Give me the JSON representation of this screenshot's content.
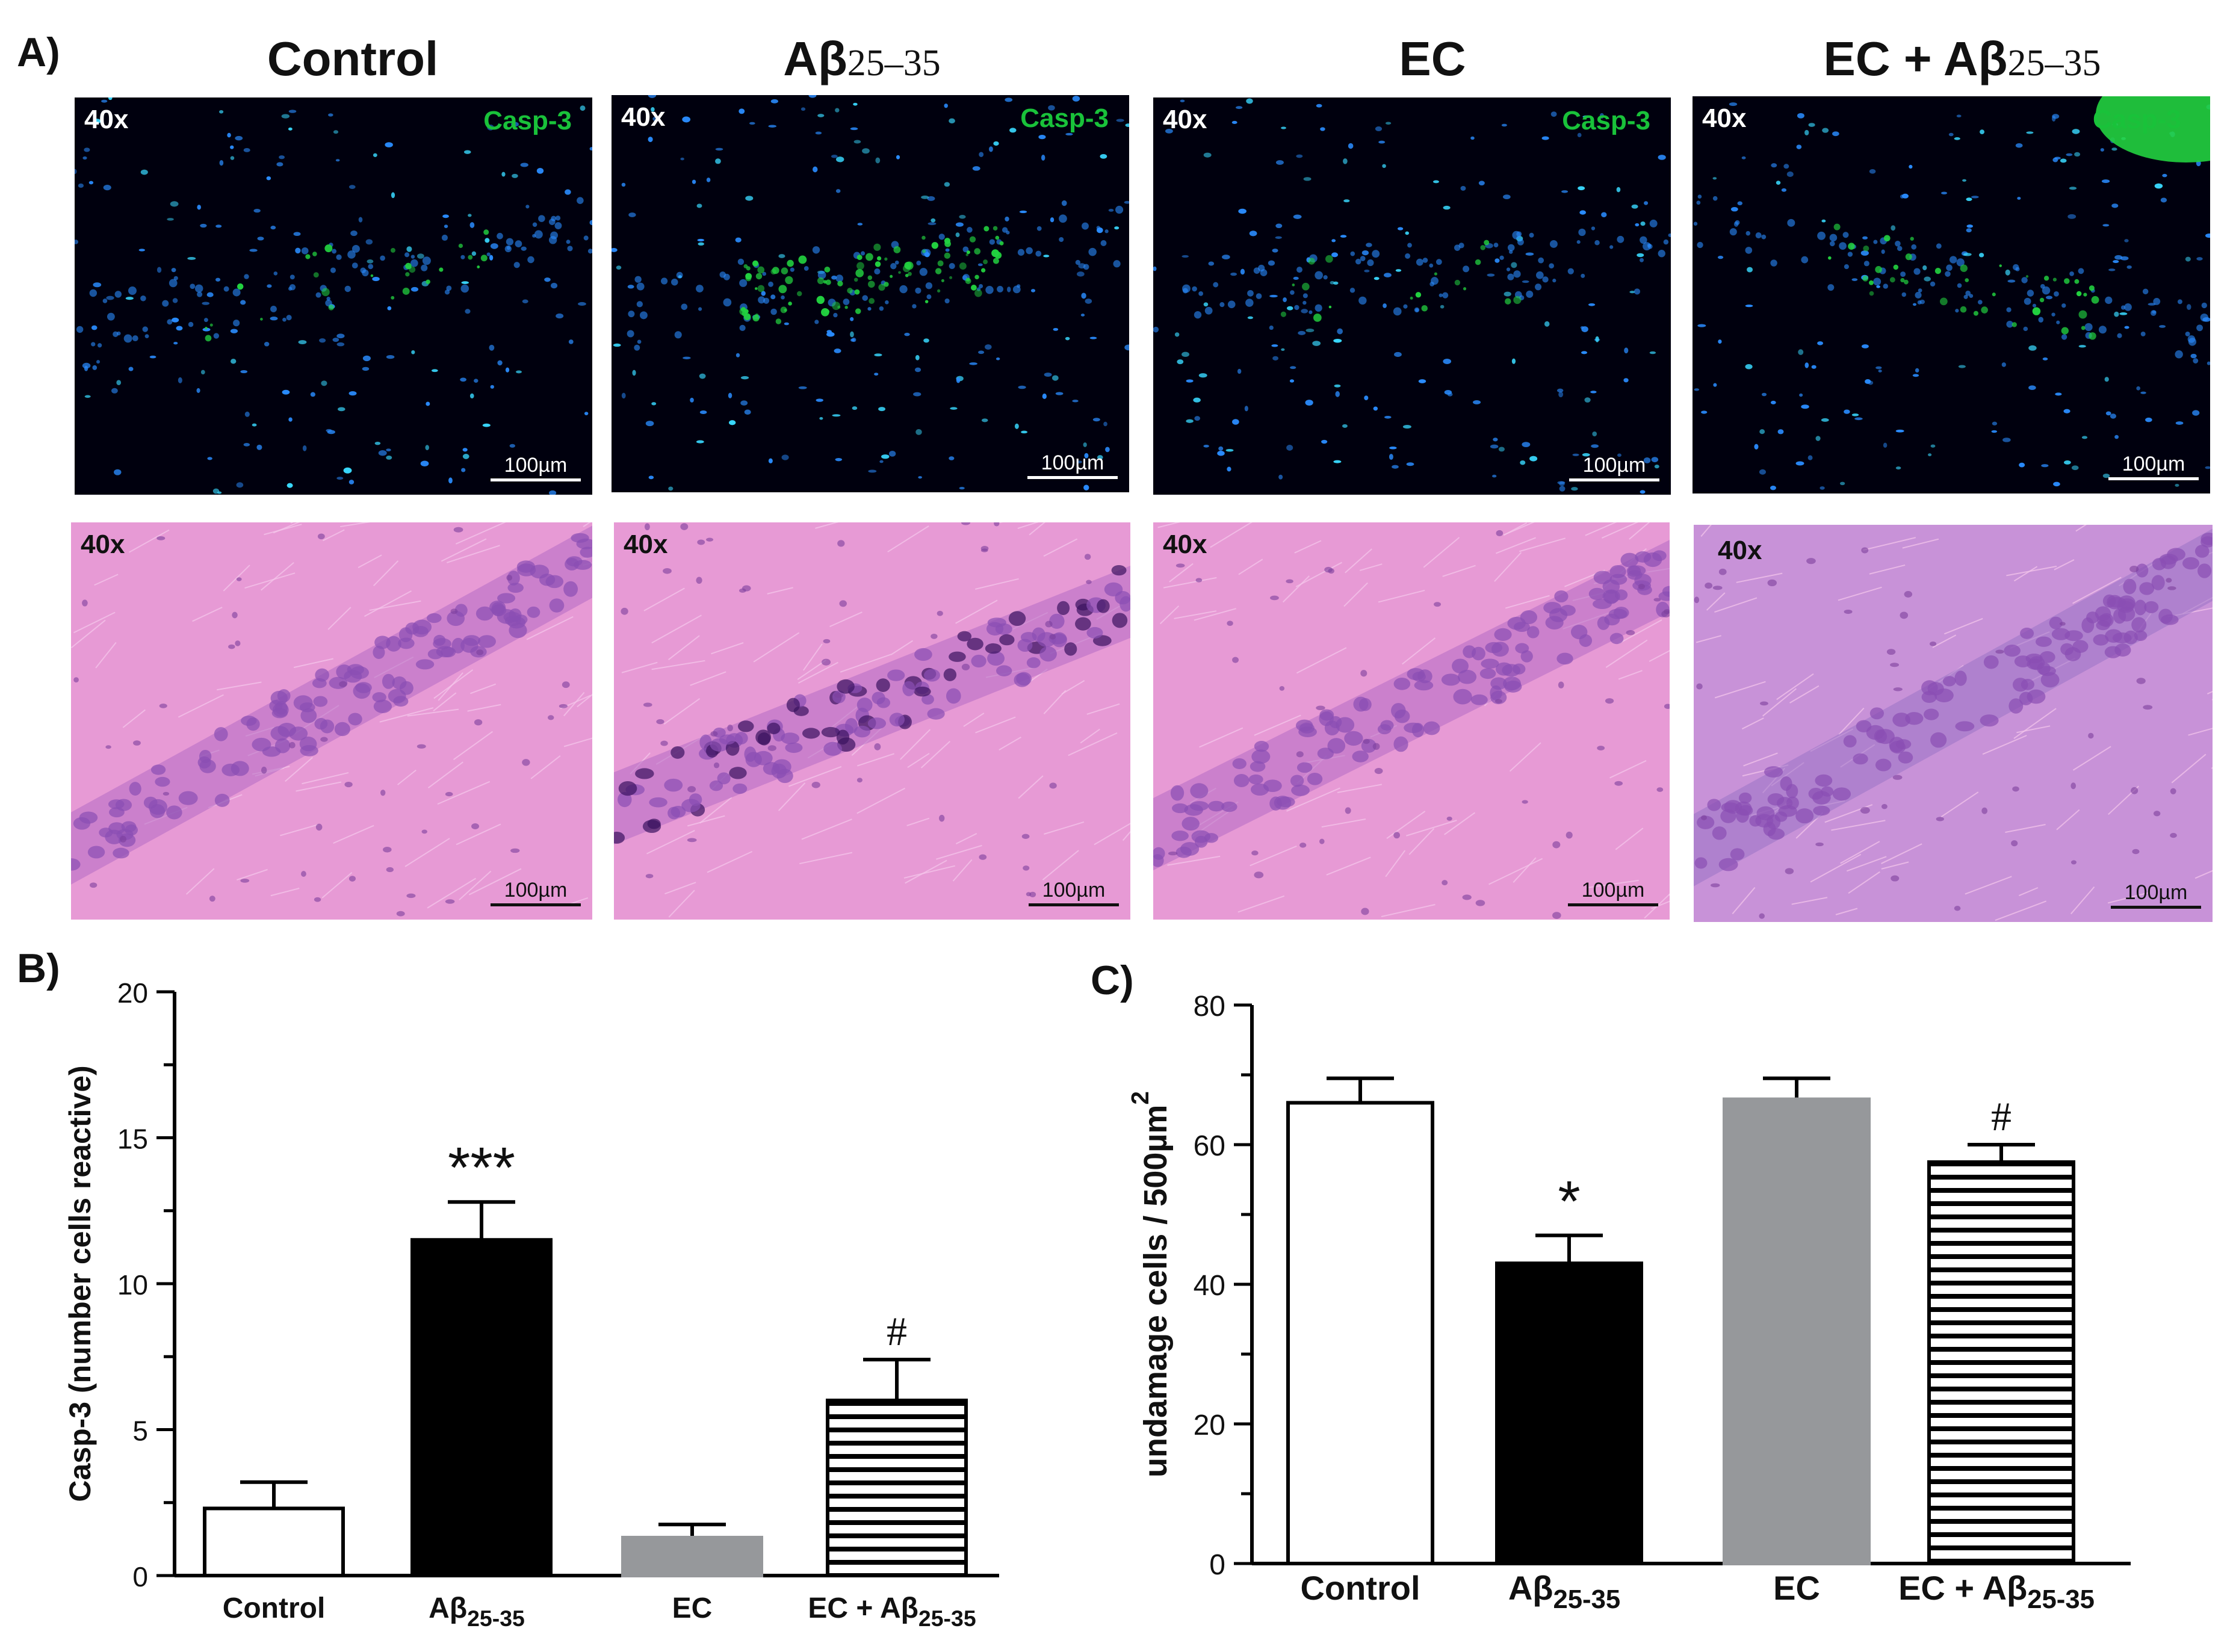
{
  "figure": {
    "panel_a_label": "A)",
    "panel_b_label": "B)",
    "panel_c_label": "C)",
    "columns": [
      {
        "title": "Control",
        "title_sub": ""
      },
      {
        "title": "Aβ",
        "title_sub": "25–35"
      },
      {
        "title": "EC",
        "title_sub": ""
      },
      {
        "title": "EC + Aβ",
        "title_sub": "25–35"
      }
    ],
    "magnification": "40x",
    "marker_label": "Casp-3",
    "scale_label": "100µm",
    "colors": {
      "fluo_bg": "#00000e",
      "nuclei": "#2a8cff",
      "casp3": "#22d240",
      "he_bg": "#e79ad5",
      "he_cells": "#8a4fb4"
    }
  },
  "chart_data": [
    {
      "type": "bar",
      "title": "",
      "ylabel": "Casp-3  (number cells reactive)",
      "xlabel": "",
      "categories": [
        "Control",
        "Aβ25-35",
        "EC",
        "EC + Aβ25-35"
      ],
      "category_labels": [
        {
          "main": "Control",
          "sub": ""
        },
        {
          "main": "Aβ",
          "sub": "25-35"
        },
        {
          "main": "EC",
          "sub": ""
        },
        {
          "main": "EC + Aβ",
          "sub": "25-35"
        }
      ],
      "values": [
        2.3,
        11.5,
        1.3,
        6.0
      ],
      "errors": [
        0.9,
        1.3,
        0.45,
        1.4
      ],
      "annotations": [
        "",
        "***",
        "",
        "#"
      ],
      "fills": [
        "white",
        "black",
        "gray",
        "stripes"
      ],
      "ylim": [
        0,
        20
      ],
      "yticks": [
        0,
        5,
        10,
        15,
        20
      ],
      "grid": false
    },
    {
      "type": "bar",
      "title": "",
      "ylabel": "undamage cells  / 500µm",
      "ylabel_sup": "2",
      "xlabel": "",
      "categories": [
        "Control",
        "Aβ25-35",
        "EC",
        "EC + Aβ25-35"
      ],
      "category_labels": [
        {
          "main": "Control",
          "sub": ""
        },
        {
          "main": "Aβ",
          "sub": "25-35"
        },
        {
          "main": "EC",
          "sub": ""
        },
        {
          "main": "EC + Aβ",
          "sub": "25-35"
        }
      ],
      "values": [
        66,
        43,
        66.5,
        57.5
      ],
      "errors": [
        3.5,
        4.0,
        3.0,
        2.5
      ],
      "annotations": [
        "",
        "*",
        "",
        "#"
      ],
      "fills": [
        "white",
        "black",
        "gray",
        "stripes"
      ],
      "ylim": [
        0,
        80
      ],
      "yticks": [
        0,
        20,
        40,
        60,
        80
      ],
      "grid": false
    }
  ]
}
